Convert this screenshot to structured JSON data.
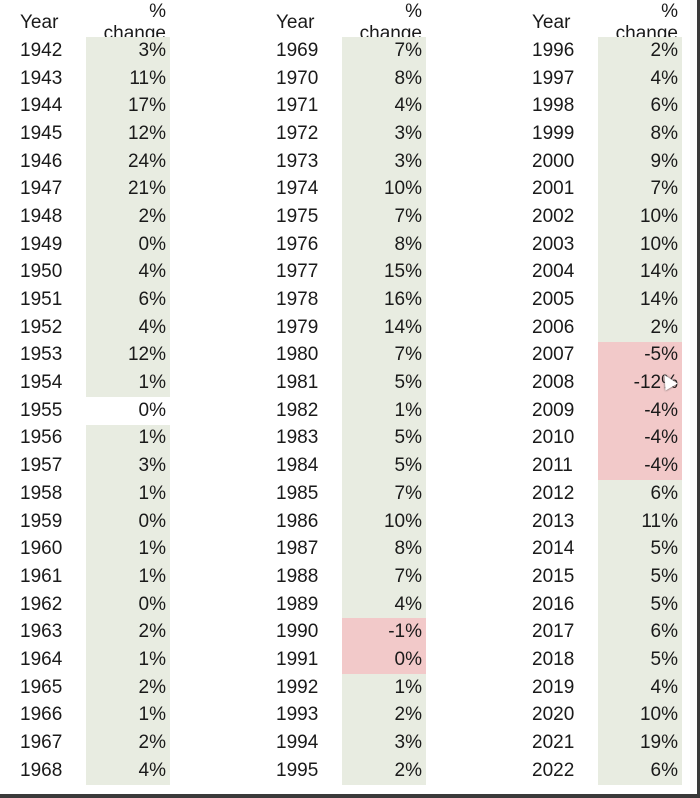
{
  "table": {
    "year_header": "Year",
    "change_header": "% change",
    "columns": [
      {
        "rows": [
          {
            "year": "1942",
            "change": "3%",
            "shade": "g"
          },
          {
            "year": "1943",
            "change": "11%",
            "shade": "g"
          },
          {
            "year": "1944",
            "change": "17%",
            "shade": "g"
          },
          {
            "year": "1945",
            "change": "12%",
            "shade": "g"
          },
          {
            "year": "1946",
            "change": "24%",
            "shade": "g"
          },
          {
            "year": "1947",
            "change": "21%",
            "shade": "g"
          },
          {
            "year": "1948",
            "change": "2%",
            "shade": "g"
          },
          {
            "year": "1949",
            "change": "0%",
            "shade": "g"
          },
          {
            "year": "1950",
            "change": "4%",
            "shade": "g"
          },
          {
            "year": "1951",
            "change": "6%",
            "shade": "g"
          },
          {
            "year": "1952",
            "change": "4%",
            "shade": "g"
          },
          {
            "year": "1953",
            "change": "12%",
            "shade": "g"
          },
          {
            "year": "1954",
            "change": "1%",
            "shade": "g"
          },
          {
            "year": "1955",
            "change": "0%",
            "shade": "w"
          },
          {
            "year": "1956",
            "change": "1%",
            "shade": "g"
          },
          {
            "year": "1957",
            "change": "3%",
            "shade": "g"
          },
          {
            "year": "1958",
            "change": "1%",
            "shade": "g"
          },
          {
            "year": "1959",
            "change": "0%",
            "shade": "g"
          },
          {
            "year": "1960",
            "change": "1%",
            "shade": "g"
          },
          {
            "year": "1961",
            "change": "1%",
            "shade": "g"
          },
          {
            "year": "1962",
            "change": "0%",
            "shade": "g"
          },
          {
            "year": "1963",
            "change": "2%",
            "shade": "g"
          },
          {
            "year": "1964",
            "change": "1%",
            "shade": "g"
          },
          {
            "year": "1965",
            "change": "2%",
            "shade": "g"
          },
          {
            "year": "1966",
            "change": "1%",
            "shade": "g"
          },
          {
            "year": "1967",
            "change": "2%",
            "shade": "g"
          },
          {
            "year": "1968",
            "change": "4%",
            "shade": "g"
          }
        ]
      },
      {
        "rows": [
          {
            "year": "1969",
            "change": "7%",
            "shade": "g"
          },
          {
            "year": "1970",
            "change": "8%",
            "shade": "g"
          },
          {
            "year": "1971",
            "change": "4%",
            "shade": "g"
          },
          {
            "year": "1972",
            "change": "3%",
            "shade": "g"
          },
          {
            "year": "1973",
            "change": "3%",
            "shade": "g"
          },
          {
            "year": "1974",
            "change": "10%",
            "shade": "g"
          },
          {
            "year": "1975",
            "change": "7%",
            "shade": "g"
          },
          {
            "year": "1976",
            "change": "8%",
            "shade": "g"
          },
          {
            "year": "1977",
            "change": "15%",
            "shade": "g"
          },
          {
            "year": "1978",
            "change": "16%",
            "shade": "g"
          },
          {
            "year": "1979",
            "change": "14%",
            "shade": "g"
          },
          {
            "year": "1980",
            "change": "7%",
            "shade": "g"
          },
          {
            "year": "1981",
            "change": "5%",
            "shade": "g"
          },
          {
            "year": "1982",
            "change": "1%",
            "shade": "g"
          },
          {
            "year": "1983",
            "change": "5%",
            "shade": "g"
          },
          {
            "year": "1984",
            "change": "5%",
            "shade": "g"
          },
          {
            "year": "1985",
            "change": "7%",
            "shade": "g"
          },
          {
            "year": "1986",
            "change": "10%",
            "shade": "g"
          },
          {
            "year": "1987",
            "change": "8%",
            "shade": "g"
          },
          {
            "year": "1988",
            "change": "7%",
            "shade": "g"
          },
          {
            "year": "1989",
            "change": "4%",
            "shade": "g"
          },
          {
            "year": "1990",
            "change": "-1%",
            "shade": "r"
          },
          {
            "year": "1991",
            "change": "0%",
            "shade": "r"
          },
          {
            "year": "1992",
            "change": "1%",
            "shade": "g"
          },
          {
            "year": "1993",
            "change": "2%",
            "shade": "g"
          },
          {
            "year": "1994",
            "change": "3%",
            "shade": "g"
          },
          {
            "year": "1995",
            "change": "2%",
            "shade": "g"
          }
        ]
      },
      {
        "rows": [
          {
            "year": "1996",
            "change": "2%",
            "shade": "g"
          },
          {
            "year": "1997",
            "change": "4%",
            "shade": "g"
          },
          {
            "year": "1998",
            "change": "6%",
            "shade": "g"
          },
          {
            "year": "1999",
            "change": "8%",
            "shade": "g"
          },
          {
            "year": "2000",
            "change": "9%",
            "shade": "g"
          },
          {
            "year": "2001",
            "change": "7%",
            "shade": "g"
          },
          {
            "year": "2002",
            "change": "10%",
            "shade": "g"
          },
          {
            "year": "2003",
            "change": "10%",
            "shade": "g"
          },
          {
            "year": "2004",
            "change": "14%",
            "shade": "g"
          },
          {
            "year": "2005",
            "change": "14%",
            "shade": "g"
          },
          {
            "year": "2006",
            "change": "2%",
            "shade": "g"
          },
          {
            "year": "2007",
            "change": "-5%",
            "shade": "r"
          },
          {
            "year": "2008",
            "change": "-12%",
            "shade": "r"
          },
          {
            "year": "2009",
            "change": "-4%",
            "shade": "r"
          },
          {
            "year": "2010",
            "change": "-4%",
            "shade": "r"
          },
          {
            "year": "2011",
            "change": "-4%",
            "shade": "r"
          },
          {
            "year": "2012",
            "change": "6%",
            "shade": "g"
          },
          {
            "year": "2013",
            "change": "11%",
            "shade": "g"
          },
          {
            "year": "2014",
            "change": "5%",
            "shade": "g"
          },
          {
            "year": "2015",
            "change": "5%",
            "shade": "g"
          },
          {
            "year": "2016",
            "change": "5%",
            "shade": "g"
          },
          {
            "year": "2017",
            "change": "6%",
            "shade": "g"
          },
          {
            "year": "2018",
            "change": "5%",
            "shade": "g"
          },
          {
            "year": "2019",
            "change": "4%",
            "shade": "g"
          },
          {
            "year": "2020",
            "change": "10%",
            "shade": "g"
          },
          {
            "year": "2021",
            "change": "19%",
            "shade": "g"
          },
          {
            "year": "2022",
            "change": "6%",
            "shade": "g"
          }
        ]
      }
    ]
  },
  "colors": {
    "positive_fill": "#e8ece1",
    "negative_fill": "#f2c9c9",
    "unshaded_fill": "#ffffff"
  }
}
